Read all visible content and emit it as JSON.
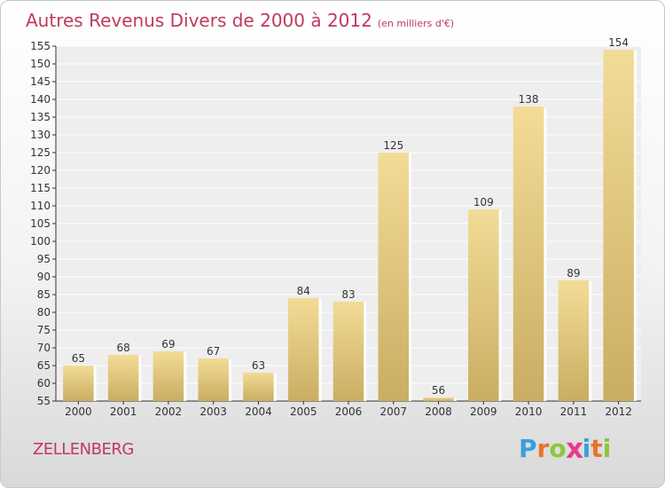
{
  "title": "Autres Revenus Divers de 2000 à 2012",
  "unit": "(en milliers d'€)",
  "commune": "ZELLENBERG",
  "brand": {
    "letters": [
      "P",
      "r",
      "o",
      "x",
      "i",
      "t",
      "i"
    ],
    "colors": [
      "#3aa0d8",
      "#e8742a",
      "#8cc63e",
      "#e83a8c",
      "#3aa0d8",
      "#e8742a",
      "#8cc63e"
    ]
  },
  "colors": {
    "title": "#c03a5c",
    "bar_top": "#f3dc97",
    "bar_bottom": "#c9ad62",
    "axis": "#333333",
    "grid": "#ffffff"
  },
  "chart_data": {
    "type": "bar",
    "categories": [
      "2000",
      "2001",
      "2002",
      "2003",
      "2004",
      "2005",
      "2006",
      "2007",
      "2008",
      "2009",
      "2010",
      "2011",
      "2012"
    ],
    "values": [
      65,
      68,
      69,
      67,
      63,
      84,
      83,
      125,
      56,
      109,
      138,
      89,
      154
    ],
    "ylim": [
      55,
      155
    ],
    "yticks": [
      55,
      60,
      65,
      70,
      75,
      80,
      85,
      90,
      95,
      100,
      105,
      110,
      115,
      120,
      125,
      130,
      135,
      140,
      145,
      150,
      155
    ],
    "grid": true,
    "data_labels": true
  }
}
